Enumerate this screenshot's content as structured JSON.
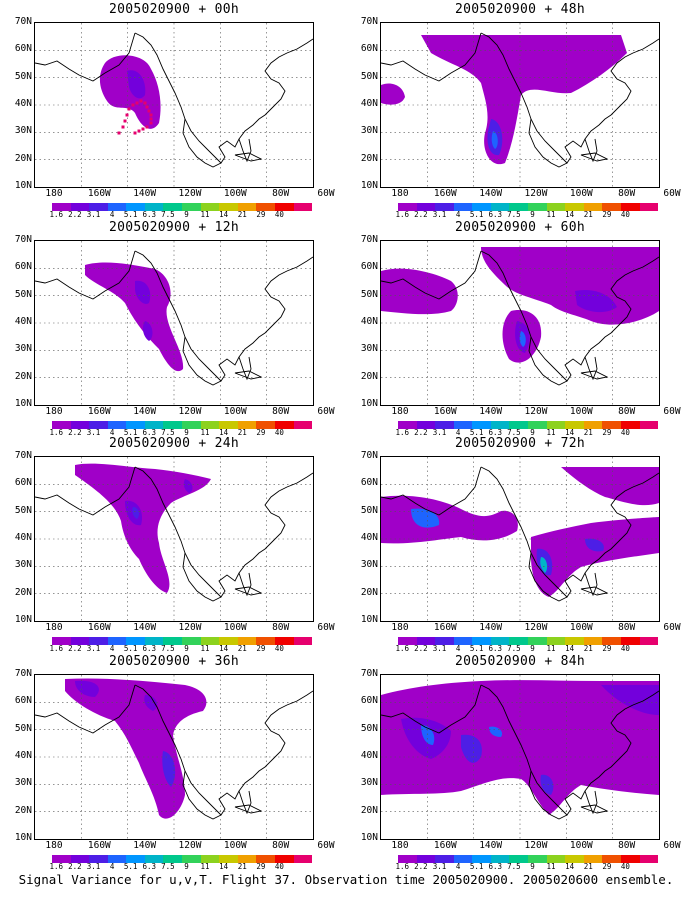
{
  "panels": [
    {
      "title": "2005020900 + 00h"
    },
    {
      "title": "2005020900 + 48h"
    },
    {
      "title": "2005020900 + 12h"
    },
    {
      "title": "2005020900 + 60h"
    },
    {
      "title": "2005020900 + 24h"
    },
    {
      "title": "2005020900 + 72h"
    },
    {
      "title": "2005020900 + 36h"
    },
    {
      "title": "2005020900 + 84h"
    }
  ],
  "lat_labels": [
    "70N",
    "60N",
    "50N",
    "40N",
    "30N",
    "20N",
    "10N"
  ],
  "lon_labels": [
    "180",
    "160W",
    "140W",
    "120W",
    "100W",
    "80W",
    "60W"
  ],
  "colorbar": {
    "levels": [
      "1.6",
      "2.2",
      "3.1",
      "4",
      "5.1",
      "6.3",
      "7.5",
      "9",
      "11",
      "14",
      "21",
      "29",
      "40"
    ],
    "colors": [
      "#a000c8",
      "#7300dc",
      "#4d1ee6",
      "#1e64ff",
      "#0096ff",
      "#00b4c8",
      "#00c88c",
      "#32d25a",
      "#8cd21e",
      "#c8c800",
      "#f0a000",
      "#f05000",
      "#f00000",
      "#e6006e"
    ]
  },
  "caption": "Signal Variance for u,v,T. Flight 37. Observation time 2005020900. 2005020600 ensemble."
}
